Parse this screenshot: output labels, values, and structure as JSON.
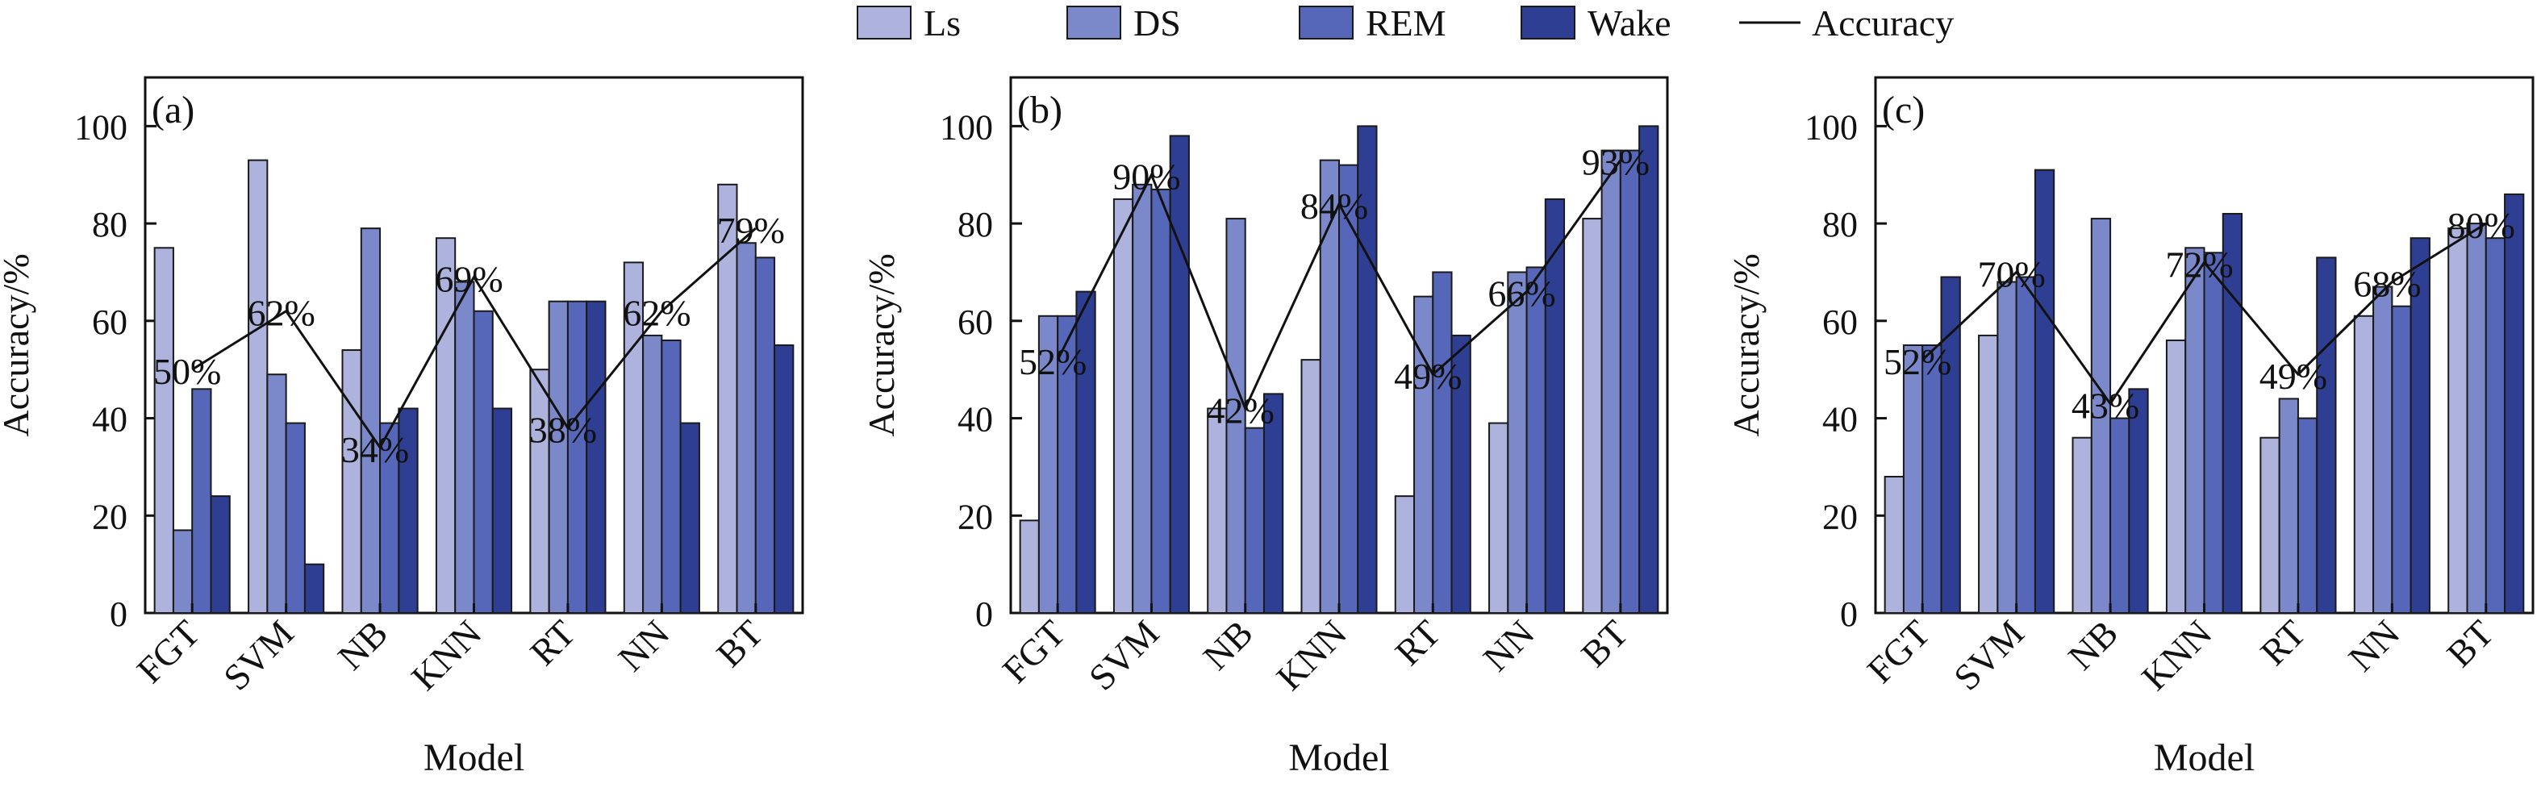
{
  "chart_data": [
    {
      "type": "bar",
      "panel_label": "(a)",
      "title": "",
      "xlabel": "Model",
      "ylabel": "Accuracy/%",
      "ylim": [
        0,
        110
      ],
      "yticks": [
        0,
        20,
        40,
        60,
        80,
        100
      ],
      "categories": [
        "FGT",
        "SVM",
        "NB",
        "KNN",
        "RT",
        "NN",
        "BT"
      ],
      "series": [
        {
          "name": "Ls",
          "values": [
            75,
            93,
            54,
            77,
            50,
            72,
            88
          ]
        },
        {
          "name": "DS",
          "values": [
            17,
            49,
            79,
            68,
            64,
            57,
            76
          ]
        },
        {
          "name": "REM",
          "values": [
            46,
            39,
            39,
            62,
            64,
            56,
            73
          ]
        },
        {
          "name": "Wake",
          "values": [
            24,
            10,
            42,
            42,
            64,
            39,
            55
          ]
        }
      ],
      "accuracy": {
        "name": "Accuracy",
        "values": [
          50,
          62,
          34,
          69,
          38,
          62,
          79
        ],
        "labels": [
          "50%",
          "62%",
          "34%",
          "69%",
          "38%",
          "62%",
          "79%"
        ]
      }
    },
    {
      "type": "bar",
      "panel_label": "(b)",
      "title": "",
      "xlabel": "Model",
      "ylabel": "Accuracy/%",
      "ylim": [
        0,
        110
      ],
      "yticks": [
        0,
        20,
        40,
        60,
        80,
        100
      ],
      "categories": [
        "FGT",
        "SVM",
        "NB",
        "KNN",
        "RT",
        "NN",
        "BT"
      ],
      "series": [
        {
          "name": "Ls",
          "values": [
            19,
            85,
            42,
            52,
            24,
            39,
            81
          ]
        },
        {
          "name": "DS",
          "values": [
            61,
            88,
            81,
            93,
            65,
            70,
            95
          ]
        },
        {
          "name": "REM",
          "values": [
            61,
            87,
            38,
            92,
            70,
            71,
            95
          ]
        },
        {
          "name": "Wake",
          "values": [
            66,
            98,
            45,
            100,
            57,
            85,
            100
          ]
        }
      ],
      "accuracy": {
        "name": "Accuracy",
        "values": [
          52,
          90,
          42,
          84,
          49,
          66,
          93
        ],
        "labels": [
          "52%",
          "90%",
          "42%",
          "84%",
          "49%",
          "66%",
          "93%"
        ]
      }
    },
    {
      "type": "bar",
      "panel_label": "(c)",
      "title": "",
      "xlabel": "Model",
      "ylabel": "Accuracy/%",
      "ylim": [
        0,
        110
      ],
      "yticks": [
        0,
        20,
        40,
        60,
        80,
        100
      ],
      "categories": [
        "FGT",
        "SVM",
        "NB",
        "KNN",
        "RT",
        "NN",
        "BT"
      ],
      "series": [
        {
          "name": "Ls",
          "values": [
            28,
            57,
            36,
            56,
            36,
            61,
            79
          ]
        },
        {
          "name": "DS",
          "values": [
            55,
            68,
            81,
            75,
            44,
            67,
            80
          ]
        },
        {
          "name": "REM",
          "values": [
            55,
            69,
            40,
            74,
            40,
            63,
            77
          ]
        },
        {
          "name": "Wake",
          "values": [
            69,
            91,
            46,
            82,
            73,
            77,
            86
          ]
        }
      ],
      "accuracy": {
        "name": "Accuracy",
        "values": [
          52,
          70,
          43,
          72,
          49,
          68,
          80
        ],
        "labels": [
          "52%",
          "70%",
          "43%",
          "72%",
          "49%",
          "68%",
          "80%"
        ]
      }
    }
  ],
  "legend": {
    "position": "top-center",
    "items": [
      {
        "name": "Ls",
        "kind": "box",
        "color": "#adb3dd"
      },
      {
        "name": "DS",
        "kind": "box",
        "color": "#7b88c9"
      },
      {
        "name": "REM",
        "kind": "box",
        "color": "#5666b8"
      },
      {
        "name": "Wake",
        "kind": "box",
        "color": "#2e3e93"
      },
      {
        "name": "Accuracy",
        "kind": "line",
        "color": "#111111"
      }
    ]
  },
  "colors": {
    "Ls": "#adb3dd",
    "DS": "#7b88c9",
    "REM": "#5666b8",
    "Wake": "#2e3e93",
    "accuracy_line": "#111111",
    "axis": "#111111"
  }
}
